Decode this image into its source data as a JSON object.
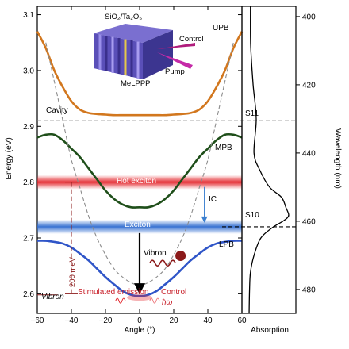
{
  "colors": {
    "upb": "#D2771E",
    "mpb": "#1F4F1A",
    "lpb": "#2F55C8",
    "cavity": "#8C8C8C",
    "hot_exciton_band": "#E3252B",
    "exciton_band": "#2E6BD0",
    "vibron": "#8B1A1A",
    "ic_arrow": "#3B7FD0",
    "axis": "#000000"
  },
  "chart_data": [
    {
      "type": "line",
      "xlabel": "Angle (°)",
      "ylabel": "Energy (eV)",
      "xlim": [
        -60,
        60
      ],
      "ylim": [
        2.565,
        3.115
      ],
      "xticks": [
        -60,
        -40,
        -20,
        0,
        20,
        40,
        60
      ],
      "yticks": [
        2.6,
        2.7,
        2.8,
        2.9,
        3.0,
        3.1
      ],
      "ytick_labels": [
        "2.6",
        "2.7",
        "2.8",
        "2.9",
        "3.0",
        "3.1"
      ],
      "series": [
        {
          "name": "UPB",
          "x": [
            -60,
            -55,
            -50,
            -45,
            -40,
            -35,
            -30,
            -25,
            -20,
            -15,
            -10,
            -5,
            0,
            5,
            10,
            15,
            20,
            25,
            30,
            35,
            40,
            45,
            50,
            55,
            60
          ],
          "y": [
            3.07,
            3.04,
            3.0,
            2.97,
            2.945,
            2.93,
            2.924,
            2.922,
            2.921,
            2.92,
            2.92,
            2.92,
            2.92,
            2.92,
            2.92,
            2.92,
            2.921,
            2.922,
            2.924,
            2.93,
            2.945,
            2.97,
            3.0,
            3.04,
            3.07
          ]
        },
        {
          "name": "MPB",
          "x": [
            -60,
            -55,
            -50,
            -45,
            -40,
            -35,
            -30,
            -25,
            -20,
            -15,
            -10,
            -5,
            0,
            5,
            10,
            15,
            20,
            25,
            30,
            35,
            40,
            45,
            50,
            55,
            60
          ],
          "y": [
            2.88,
            2.885,
            2.885,
            2.875,
            2.86,
            2.845,
            2.825,
            2.805,
            2.785,
            2.77,
            2.76,
            2.755,
            2.755,
            2.755,
            2.76,
            2.77,
            2.785,
            2.805,
            2.825,
            2.845,
            2.86,
            2.875,
            2.885,
            2.885,
            2.88
          ]
        },
        {
          "name": "LPB",
          "x": [
            -60,
            -55,
            -50,
            -45,
            -40,
            -35,
            -30,
            -25,
            -20,
            -15,
            -10,
            -5,
            0,
            5,
            10,
            15,
            20,
            25,
            30,
            35,
            40,
            45,
            50,
            55,
            60
          ],
          "y": [
            2.695,
            2.695,
            2.693,
            2.69,
            2.683,
            2.672,
            2.66,
            2.645,
            2.63,
            2.617,
            2.605,
            2.598,
            2.596,
            2.598,
            2.605,
            2.617,
            2.63,
            2.645,
            2.66,
            2.672,
            2.683,
            2.69,
            2.693,
            2.695,
            2.695
          ]
        },
        {
          "name": "Cavity",
          "x": [
            -55,
            -50,
            -45,
            -40,
            -35,
            -30,
            -25,
            -20,
            -15,
            -10,
            -5,
            0,
            5,
            10,
            15,
            20,
            25,
            30,
            35,
            40,
            45,
            50,
            55
          ],
          "y": [
            3.05,
            2.98,
            2.91,
            2.84,
            2.79,
            2.74,
            2.7,
            2.67,
            2.645,
            2.63,
            2.62,
            2.615,
            2.62,
            2.63,
            2.645,
            2.67,
            2.7,
            2.74,
            2.79,
            2.84,
            2.91,
            2.98,
            3.05
          ]
        }
      ],
      "bands": [
        {
          "name": "Hot exciton",
          "y": 2.8
        },
        {
          "name": "Exciton",
          "y": 2.72
        }
      ],
      "reference_lines": [
        {
          "label": "S11",
          "y": 2.91
        },
        {
          "label": "S10",
          "y": 2.72
        }
      ],
      "labels": {
        "upb": "UPB",
        "mpb": "MPB",
        "lpb": "LPB",
        "cavity": "Cavity",
        "hot_exciton": "Hot exciton",
        "exciton": "Exciton",
        "ic": "IC",
        "vibron_mid": "Vibron",
        "vibron_left": "Vibron",
        "energy_200": "200 meV",
        "stimulated_emission": "Stimulated emission",
        "control": "Control",
        "hw": "ħω",
        "s11": "S11",
        "s10": "S10",
        "inset_material": "SiO₂/Ta₂O₅",
        "inset_control": "Control",
        "inset_pump": "Pump",
        "inset_molecule": "MeLPPP"
      }
    },
    {
      "type": "line",
      "xlabel": "Absorption",
      "ylabel": "Wavelength (nm)",
      "ylim": [
        400,
        480
      ],
      "yticks": [
        400,
        420,
        440,
        460,
        480
      ],
      "y": [
        397,
        405,
        410,
        420,
        430,
        440,
        445,
        450,
        453,
        456,
        458,
        459,
        460,
        462,
        465,
        470,
        475,
        480,
        487
      ],
      "absorption": [
        0.12,
        0.12,
        0.13,
        0.18,
        0.25,
        0.2,
        0.33,
        0.55,
        0.82,
        0.92,
        0.98,
        0.95,
        0.85,
        0.6,
        0.35,
        0.2,
        0.12,
        0.1,
        0.09
      ]
    }
  ]
}
